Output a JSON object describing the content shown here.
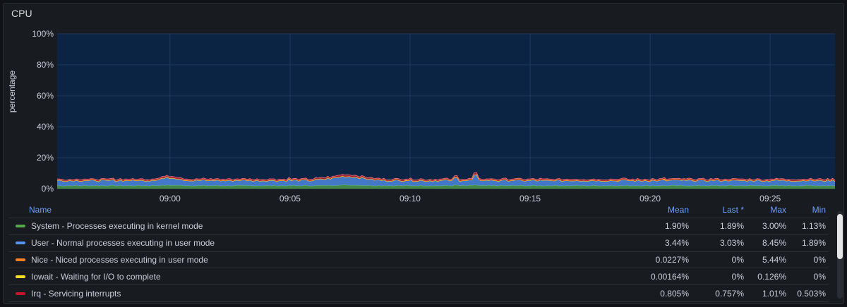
{
  "panel": {
    "title": "CPU",
    "y_axis_label": "percentage"
  },
  "chart_data": {
    "type": "area",
    "stacked": true,
    "ylabel": "percentage",
    "ylim": [
      0,
      100
    ],
    "y_ticks": [
      "0%",
      "20%",
      "40%",
      "60%",
      "80%",
      "100%"
    ],
    "x_ticks": [
      {
        "t": 0,
        "label": "09:00"
      },
      {
        "t": 5,
        "label": "09:05"
      },
      {
        "t": 10,
        "label": "09:10"
      },
      {
        "t": 15,
        "label": "09:15"
      },
      {
        "t": 20,
        "label": "09:20"
      },
      {
        "t": 25,
        "label": "09:25"
      }
    ],
    "xlim": [
      -4.7,
      27.7
    ],
    "grid": true,
    "background_color": "#0b2444",
    "series": [
      {
        "name": "System - Processes executing in kernel mode",
        "color": "#56a64b",
        "mean": 1.9
      },
      {
        "name": "User - Normal processes executing in user mode",
        "color": "#5794f2",
        "mean": 3.44
      },
      {
        "name": "Nice - Niced processes executing in user mode",
        "color": "#ff7f1e",
        "mean": 0.0227
      },
      {
        "name": "Iowait - Waiting for I/O to complete",
        "color": "#fade2a",
        "mean": 0.00164
      },
      {
        "name": "Irq - Servicing interrupts",
        "color": "#c4162a",
        "mean": 0.805
      }
    ]
  },
  "legend": {
    "headers": {
      "name": "Name",
      "mean": "Mean",
      "last": "Last *",
      "max": "Max",
      "min": "Min"
    },
    "rows": [
      {
        "label": "System - Processes executing in kernel mode",
        "color": "#56a64b",
        "mean": "1.90%",
        "last": "1.89%",
        "max": "3.00%",
        "min": "1.13%"
      },
      {
        "label": "User - Normal processes executing in user mode",
        "color": "#5794f2",
        "mean": "3.44%",
        "last": "3.03%",
        "max": "8.45%",
        "min": "1.89%"
      },
      {
        "label": "Nice - Niced processes executing in user mode",
        "color": "#ff7f1e",
        "mean": "0.0227%",
        "last": "0%",
        "max": "5.44%",
        "min": "0%"
      },
      {
        "label": "Iowait - Waiting for I/O to complete",
        "color": "#fade2a",
        "mean": "0.00164%",
        "last": "0%",
        "max": "0.126%",
        "min": "0%"
      },
      {
        "label": "Irq - Servicing interrupts",
        "color": "#c4162a",
        "mean": "0.805%",
        "last": "0.757%",
        "max": "1.01%",
        "min": "0.503%"
      }
    ]
  }
}
